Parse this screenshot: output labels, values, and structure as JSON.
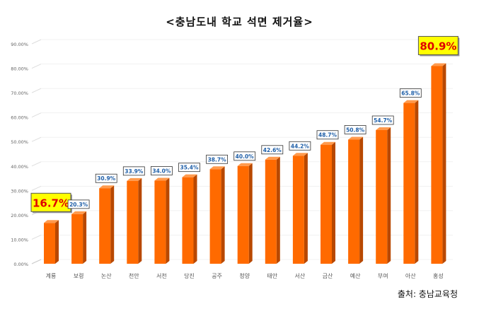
{
  "chart_data": {
    "type": "bar",
    "title": "<충남도내 학교 석면 제거율>",
    "source": "출처: 충남교육청",
    "categories": [
      "계룡",
      "보령",
      "논산",
      "천안",
      "서천",
      "당진",
      "공주",
      "청양",
      "태안",
      "서산",
      "금산",
      "예산",
      "부여",
      "아산",
      "홍성"
    ],
    "values": [
      16.7,
      20.3,
      30.9,
      33.9,
      34.0,
      35.4,
      38.7,
      40.0,
      42.6,
      44.2,
      48.7,
      50.8,
      54.7,
      65.8,
      80.9
    ],
    "data_labels": [
      "16.7%",
      "20.3%",
      "30.9%",
      "33.9%",
      "34.0%",
      "35.4%",
      "38.7%",
      "40.0%",
      "42.6%",
      "44.2%",
      "48.7%",
      "50.8%",
      "54.7%",
      "65.8%",
      "80.9%"
    ],
    "highlighted": [
      "계룡",
      "홍성"
    ],
    "y_ticks": [
      "0.00%",
      "10.00%",
      "20.00%",
      "30.00%",
      "40.00%",
      "50.00%",
      "60.00%",
      "70.00%",
      "80.00%",
      "90.00%"
    ],
    "ylim": [
      0,
      90
    ],
    "xlabel": "",
    "ylabel": "",
    "grid": true,
    "colors": {
      "bar": "#ff6a00",
      "bar_side": "#b84800",
      "bar_top": "#ff9a4d",
      "label_text": "#1f5fa8",
      "highlight_bg": "#ffff00",
      "highlight_text": "#e00000"
    }
  }
}
